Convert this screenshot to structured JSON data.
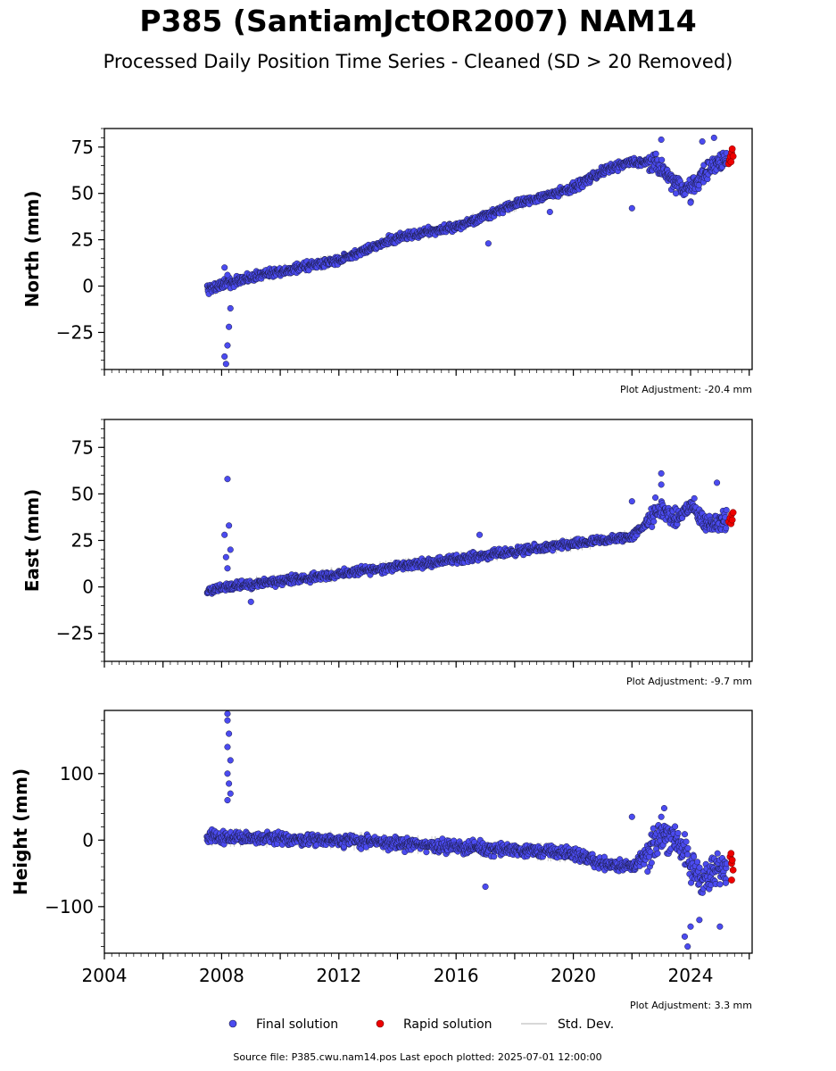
{
  "header": {
    "title": "P385 (SantiamJctOR2007) NAM14",
    "subtitle": "Processed Daily Position Time Series - Cleaned (SD > 20 Removed)"
  },
  "colors": {
    "final": "#4b4bf0",
    "final_edge": "#1a1a40",
    "rapid": "#ee0000",
    "stddev": "#cccccc"
  },
  "legend": {
    "final_label": "Final solution",
    "rapid_label": "Rapid solution",
    "stddev_label": "Std. Dev."
  },
  "footer": {
    "text": "Source file: P385.cwu.nam14.pos  Last epoch plotted: 2025-07-01 12:00:00"
  },
  "chart_data": [
    {
      "type": "scatter",
      "ylabel": "North (mm)",
      "adjustment": "Plot Adjustment: -20.4 mm",
      "xlim": [
        2004.0,
        2026.1
      ],
      "ylim": [
        -45,
        85
      ],
      "yticks": [
        -25,
        0,
        25,
        50,
        75
      ],
      "ytick_labels": [
        "−25",
        "0",
        "25",
        "50",
        "75"
      ],
      "trend": [
        [
          2007.5,
          -2
        ],
        [
          2009,
          5
        ],
        [
          2012,
          14
        ],
        [
          2014,
          26
        ],
        [
          2016,
          32
        ],
        [
          2018,
          44
        ],
        [
          2020,
          53
        ],
        [
          2021,
          62
        ],
        [
          2022,
          67
        ],
        [
          2022.8,
          66
        ],
        [
          2023.5,
          55
        ],
        [
          2024,
          52
        ],
        [
          2024.5,
          62
        ],
        [
          2025.3,
          70
        ]
      ],
      "outliers": [
        [
          2008.1,
          -38
        ],
        [
          2008.15,
          -42
        ],
        [
          2008.2,
          -32
        ],
        [
          2008.25,
          -22
        ],
        [
          2008.3,
          -12
        ],
        [
          2008.1,
          10
        ],
        [
          2008.2,
          6
        ],
        [
          2017.1,
          23
        ],
        [
          2022.0,
          42
        ],
        [
          2019.2,
          40
        ],
        [
          2023.0,
          79
        ],
        [
          2024.4,
          78
        ],
        [
          2024.8,
          80
        ],
        [
          2023.5,
          50
        ],
        [
          2024.0,
          45
        ]
      ],
      "rapid": [
        [
          2025.3,
          66
        ],
        [
          2025.33,
          68
        ],
        [
          2025.36,
          70
        ],
        [
          2025.4,
          72
        ],
        [
          2025.42,
          74
        ],
        [
          2025.45,
          70
        ],
        [
          2025.38,
          67
        ]
      ]
    },
    {
      "type": "scatter",
      "ylabel": "East (mm)",
      "adjustment": "Plot Adjustment: -9.7 mm",
      "xlim": [
        2004.0,
        2026.1
      ],
      "ylim": [
        -40,
        90
      ],
      "yticks": [
        -25,
        0,
        25,
        50,
        75
      ],
      "ytick_labels": [
        "−25",
        "0",
        "25",
        "50",
        "75"
      ],
      "trend": [
        [
          2007.5,
          -2
        ],
        [
          2008.5,
          1
        ],
        [
          2010,
          3
        ],
        [
          2012,
          7
        ],
        [
          2014,
          11
        ],
        [
          2016,
          15
        ],
        [
          2018,
          19
        ],
        [
          2020,
          23
        ],
        [
          2021,
          25
        ],
        [
          2022,
          27
        ],
        [
          2022.6,
          36
        ],
        [
          2023,
          42
        ],
        [
          2023.5,
          36
        ],
        [
          2024,
          44
        ],
        [
          2024.5,
          34
        ],
        [
          2025.3,
          36
        ]
      ],
      "outliers": [
        [
          2008.2,
          58
        ],
        [
          2008.25,
          33
        ],
        [
          2008.1,
          28
        ],
        [
          2008.3,
          20
        ],
        [
          2008.15,
          16
        ],
        [
          2008.2,
          10
        ],
        [
          2009.0,
          -8
        ],
        [
          2016.8,
          28
        ],
        [
          2022.0,
          46
        ],
        [
          2023.0,
          61
        ],
        [
          2023.0,
          55
        ],
        [
          2022.8,
          48
        ],
        [
          2024.9,
          56
        ]
      ],
      "rapid": [
        [
          2025.3,
          35
        ],
        [
          2025.35,
          37
        ],
        [
          2025.4,
          39
        ],
        [
          2025.45,
          40
        ],
        [
          2025.38,
          34
        ],
        [
          2025.42,
          36
        ]
      ]
    },
    {
      "type": "scatter",
      "ylabel": "Height (mm)",
      "adjustment": "Plot Adjustment: 3.3 mm",
      "xlim": [
        2004.0,
        2026.1
      ],
      "ylim": [
        -170,
        195
      ],
      "yticks": [
        -100,
        0,
        100
      ],
      "ytick_labels": [
        "−100",
        "0",
        "100"
      ],
      "xticks": [
        2004,
        2008,
        2012,
        2016,
        2020,
        2024
      ],
      "xtick_labels": [
        "2004",
        "2008",
        "2012",
        "2016",
        "2020",
        "2024"
      ],
      "trend": [
        [
          2007.5,
          5
        ],
        [
          2009,
          3
        ],
        [
          2012,
          0
        ],
        [
          2014,
          -5
        ],
        [
          2016,
          -10
        ],
        [
          2018,
          -15
        ],
        [
          2020,
          -20
        ],
        [
          2021,
          -35
        ],
        [
          2022,
          -40
        ],
        [
          2022.6,
          -20
        ],
        [
          2023,
          10
        ],
        [
          2023.5,
          5
        ],
        [
          2024,
          -40
        ],
        [
          2024.5,
          -60
        ],
        [
          2025.3,
          -35
        ]
      ],
      "outliers": [
        [
          2008.2,
          190
        ],
        [
          2008.2,
          180
        ],
        [
          2008.25,
          160
        ],
        [
          2008.2,
          140
        ],
        [
          2008.3,
          120
        ],
        [
          2008.2,
          100
        ],
        [
          2008.25,
          85
        ],
        [
          2008.3,
          70
        ],
        [
          2008.2,
          60
        ],
        [
          2017.0,
          -70
        ],
        [
          2022.0,
          35
        ],
        [
          2023.1,
          48
        ],
        [
          2023.0,
          35
        ],
        [
          2023.8,
          -145
        ],
        [
          2024.0,
          -130
        ],
        [
          2024.3,
          -120
        ],
        [
          2023.9,
          -160
        ],
        [
          2025.0,
          -130
        ]
      ],
      "rapid": [
        [
          2025.35,
          -25
        ],
        [
          2025.4,
          -35
        ],
        [
          2025.45,
          -45
        ],
        [
          2025.4,
          -60
        ],
        [
          2025.38,
          -20
        ],
        [
          2025.42,
          -30
        ]
      ]
    }
  ]
}
